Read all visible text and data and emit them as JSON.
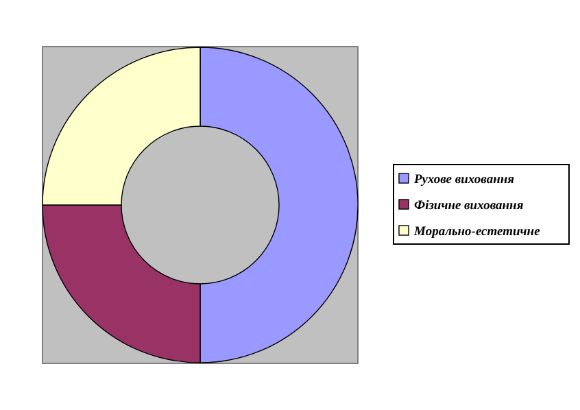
{
  "chart_data": {
    "type": "donut",
    "categories": [
      "Рухове виховання",
      "Фізичне виховання",
      "Морально-естетичне"
    ],
    "values": [
      50,
      25,
      25
    ],
    "colors": [
      "#9999ff",
      "#993366",
      "#ffffcc"
    ],
    "legend": "right"
  }
}
